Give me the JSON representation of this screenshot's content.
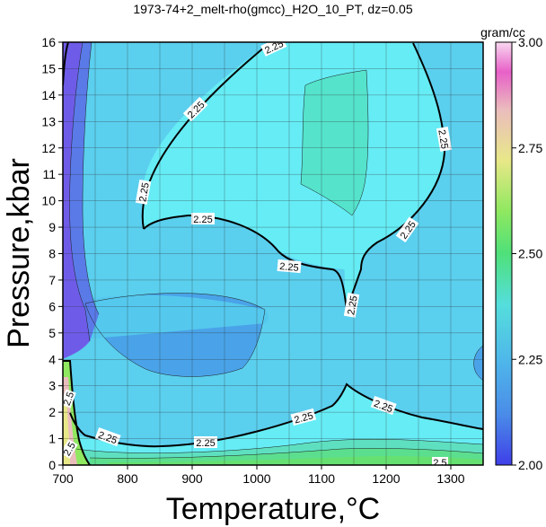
{
  "chart_data": {
    "type": "heatmap",
    "title": "1973-74+2_melt-rho(gmcc)_H2O_10_PT, dz=0.05",
    "xlabel": "Temperature,°C",
    "ylabel": "Pressure,kbar",
    "xlim": [
      700,
      1350
    ],
    "ylim": [
      0,
      16
    ],
    "xticks": [
      700,
      800,
      900,
      1000,
      1100,
      1200,
      1300
    ],
    "yticks": [
      0,
      1,
      2,
      3,
      4,
      5,
      6,
      7,
      8,
      9,
      10,
      11,
      12,
      13,
      14,
      15,
      16
    ],
    "grid": true,
    "colorbar": {
      "label": "gram/cc",
      "range": [
        2.0,
        3.0
      ],
      "ticks": [
        "2.00",
        "2.25",
        "2.50",
        "2.75",
        "3.00"
      ]
    },
    "contour_labels": [
      "2.25",
      "2.25",
      "2.25",
      "2.25",
      "2.25",
      "2.25",
      "2.25",
      "2.25",
      "2.25",
      "2.25",
      "2.25",
      "2.25",
      "2.5",
      "2.5",
      "2.5"
    ],
    "colors": {
      "background_main": "#5bcfee",
      "inner_high": "#4fe3d0",
      "inner_mid": "#66ecf5",
      "low_band": "#4a9ae8",
      "left_edge": "#6e5ce8",
      "bottom_green": "#5cde8f"
    }
  }
}
